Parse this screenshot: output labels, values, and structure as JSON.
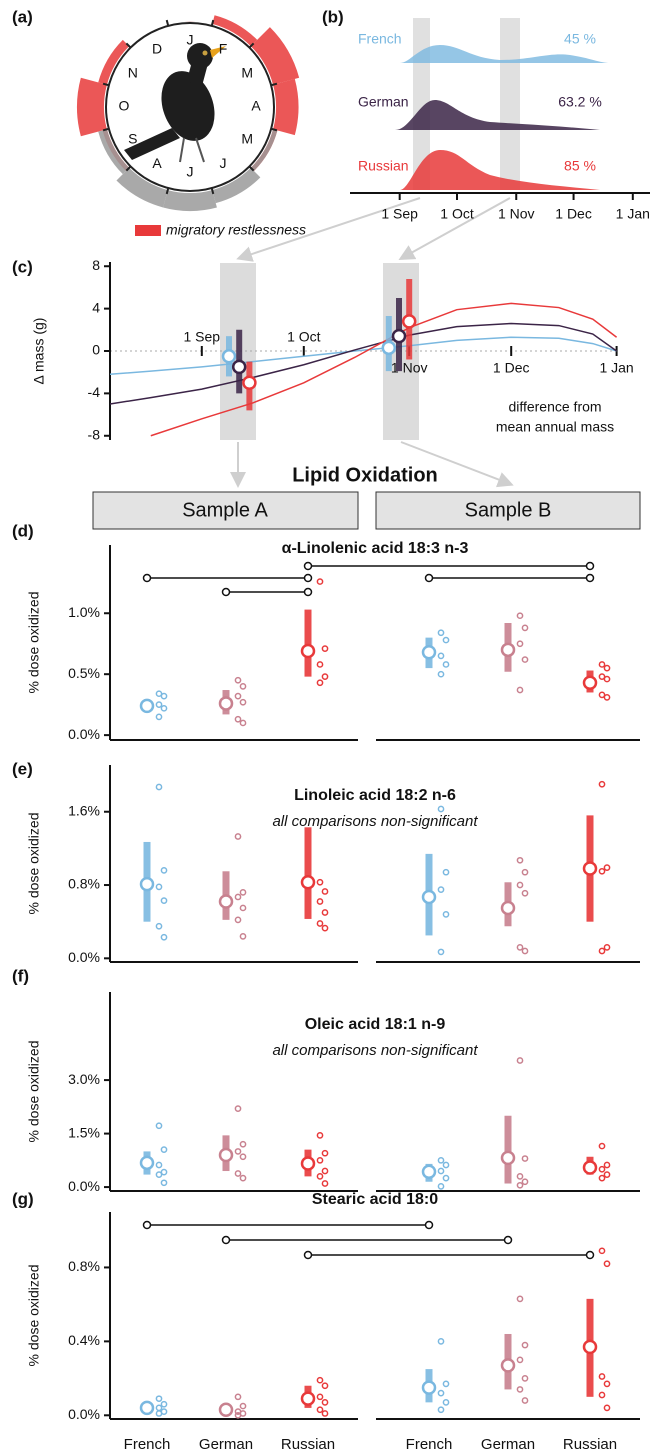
{
  "heading": "Lipid Oxidation",
  "samples": [
    "Sample A",
    "Sample B"
  ],
  "groups": {
    "names": [
      "French",
      "German",
      "Russian"
    ],
    "colors": [
      "#7ab8e0",
      "#c8818f",
      "#e8393a"
    ]
  },
  "chart_data": [
    {
      "type": "radial",
      "label": "(a)",
      "categories": [
        "J",
        "F",
        "M",
        "A",
        "M",
        "J",
        "J",
        "A",
        "S",
        "O",
        "N",
        "D"
      ],
      "series": [
        {
          "name": "migratory restlessness",
          "color": "#e8393a",
          "values": [
            0,
            1,
            3,
            2.5,
            0.5,
            0,
            0,
            0,
            0.5,
            3,
            1,
            0
          ]
        },
        {
          "color": "#9a9a9a",
          "values": [
            0,
            0,
            0,
            0,
            0.5,
            1.5,
            2,
            2,
            1,
            0,
            0,
            0
          ]
        }
      ]
    },
    {
      "type": "ridge",
      "label": "(b)",
      "series": [
        {
          "name": "French",
          "color": "#7ab8e0",
          "share_label": "45 %"
        },
        {
          "name": "German",
          "color": "#3b2447",
          "share_label": "63.2 %"
        },
        {
          "name": "Russian",
          "color": "#e8393a",
          "share_label": "85 %"
        }
      ],
      "xlim": [
        -26,
        131
      ],
      "xticks": [
        {
          "value": 0,
          "label": "1 Sep"
        },
        {
          "value": 30,
          "label": "1 Oct"
        },
        {
          "value": 61,
          "label": "1 Nov"
        },
        {
          "value": 91,
          "label": "1 Dec"
        },
        {
          "value": 122,
          "label": "1 Jan"
        }
      ]
    },
    {
      "type": "line",
      "label": "(c)",
      "ylabel": "Δ mass (g)",
      "annotation": [
        "difference from",
        "mean annual mass"
      ],
      "x": [
        -27,
        -15,
        0,
        15,
        30,
        45,
        61,
        75,
        91,
        105,
        115,
        122
      ],
      "series": [
        {
          "color": "#7ab8e0",
          "values": [
            -2.2,
            -1.9,
            -1.5,
            -1.0,
            -0.5,
            0.0,
            0.5,
            1.0,
            1.3,
            1.2,
            0.7,
            0.0
          ]
        },
        {
          "color": "#3b2447",
          "values": [
            -5.0,
            -4.4,
            -3.6,
            -2.5,
            -1.3,
            0.1,
            1.5,
            2.3,
            2.6,
            2.4,
            1.6,
            0.0
          ]
        },
        {
          "color": "#e8393a",
          "values": [
            null,
            -8.0,
            -6.4,
            -4.9,
            -3.0,
            -0.6,
            2.2,
            3.9,
            4.5,
            4.1,
            3.0,
            1.3
          ]
        }
      ],
      "samples": [
        {
          "x": [
            8,
            11,
            14
          ],
          "values": [
            -0.5,
            -1.5,
            -3.0
          ],
          "low": [
            -2.4,
            -4.0,
            -5.6
          ],
          "high": [
            1.4,
            2.0,
            -1.0
          ]
        },
        {
          "x": [
            55,
            58,
            61
          ],
          "values": [
            0.3,
            1.4,
            2.8
          ],
          "low": [
            -1.9,
            -1.9,
            -0.8
          ],
          "high": [
            3.3,
            5.0,
            6.8
          ]
        }
      ],
      "xlim": [
        -27,
        123
      ],
      "xticks": [
        {
          "value": 0,
          "label": "1 Sep"
        },
        {
          "value": 30,
          "label": "1 Oct"
        },
        {
          "value": 61,
          "label": "1 Nov"
        },
        {
          "value": 91,
          "label": "1 Dec"
        },
        {
          "value": 122,
          "label": "1 Jan"
        }
      ],
      "ylim": [
        -8.4,
        8.4
      ],
      "yticks": [
        -8,
        -4,
        0,
        4,
        8
      ]
    },
    {
      "type": "pointrange",
      "label": "(d)",
      "title": "α-Linolenic acid 18:3 n-3",
      "ylabel": "% dose oxidized",
      "ylim": [
        -0.04,
        1.56
      ],
      "yticks": [
        {
          "value": 0,
          "label": "0.0%"
        },
        {
          "value": 0.5,
          "label": "0.5%"
        },
        {
          "value": 1,
          "label": "1.0%"
        }
      ],
      "samples": [
        {
          "means": [
            0.24,
            0.26,
            0.69
          ],
          "low": [
            0.2,
            0.17,
            0.48
          ],
          "high": [
            0.28,
            0.37,
            1.03
          ],
          "points": [
            [
              0.34,
              0.32,
              0.25,
              0.22,
              0.15
            ],
            [
              0.45,
              0.4,
              0.32,
              0.27,
              0.13,
              0.1
            ],
            [
              1.26,
              0.71,
              0.58,
              0.48,
              0.43
            ]
          ]
        },
        {
          "means": [
            0.68,
            0.7,
            0.43
          ],
          "low": [
            0.55,
            0.52,
            0.35
          ],
          "high": [
            0.8,
            0.92,
            0.53
          ],
          "points": [
            [
              0.84,
              0.78,
              0.65,
              0.58,
              0.5
            ],
            [
              0.98,
              0.88,
              0.75,
              0.62,
              0.37
            ],
            [
              0.58,
              0.55,
              0.48,
              0.46,
              0.33,
              0.31
            ]
          ]
        }
      ]
    },
    {
      "type": "pointrange",
      "label": "(e)",
      "title": "Linoleic acid 18:2 n-6",
      "subtitle": "all comparisons non-significant",
      "ylabel": "% dose oxidized",
      "ylim": [
        -0.04,
        2.11
      ],
      "yticks": [
        {
          "value": 0,
          "label": "0.0%"
        },
        {
          "value": 0.8,
          "label": "0.8%"
        },
        {
          "value": 1.6,
          "label": "1.6%"
        }
      ],
      "samples": [
        {
          "means": [
            0.81,
            0.62,
            0.83
          ],
          "low": [
            0.4,
            0.42,
            0.43
          ],
          "high": [
            1.27,
            0.95,
            1.43
          ],
          "points": [
            [
              1.87,
              0.96,
              0.78,
              0.63,
              0.35,
              0.23
            ],
            [
              1.33,
              0.72,
              0.67,
              0.55,
              0.42,
              0.24
            ],
            [
              0.83,
              0.73,
              0.62,
              0.5,
              0.38,
              0.33
            ]
          ]
        },
        {
          "means": [
            0.67,
            0.55,
            0.98
          ],
          "low": [
            0.25,
            0.35,
            0.4
          ],
          "high": [
            1.14,
            0.83,
            1.56
          ],
          "points": [
            [
              1.63,
              0.94,
              0.75,
              0.48,
              0.07
            ],
            [
              1.07,
              0.94,
              0.8,
              0.71,
              0.12,
              0.08
            ],
            [
              1.9,
              0.99,
              0.95,
              0.12,
              0.08
            ]
          ]
        }
      ]
    },
    {
      "type": "pointrange",
      "label": "(f)",
      "title": "Oleic acid 18:1 n-9",
      "subtitle": "all comparisons non-significant",
      "ylabel": "% dose oxidized",
      "ylim": [
        -0.11,
        5.47
      ],
      "yticks": [
        {
          "value": 0,
          "label": "0.0%"
        },
        {
          "value": 1.5,
          "label": "1.5%"
        },
        {
          "value": 3,
          "label": "3.0%"
        }
      ],
      "samples": [
        {
          "means": [
            0.68,
            0.9,
            0.66
          ],
          "low": [
            0.35,
            0.45,
            0.3
          ],
          "high": [
            1.0,
            1.45,
            1.05
          ],
          "points": [
            [
              1.72,
              1.05,
              0.62,
              0.42,
              0.35,
              0.12
            ],
            [
              2.2,
              1.2,
              1.0,
              0.85,
              0.38,
              0.25
            ],
            [
              1.45,
              0.95,
              0.75,
              0.45,
              0.3,
              0.1
            ]
          ]
        },
        {
          "means": [
            0.43,
            0.82,
            0.55
          ],
          "low": [
            0.15,
            0.1,
            0.35
          ],
          "high": [
            0.65,
            2.0,
            0.85
          ],
          "points": [
            [
              0.75,
              0.62,
              0.45,
              0.25,
              0.02
            ],
            [
              3.55,
              0.8,
              0.3,
              0.15,
              0.05
            ],
            [
              1.15,
              0.62,
              0.5,
              0.35,
              0.25
            ]
          ]
        }
      ]
    },
    {
      "type": "pointrange",
      "label": "(g)",
      "title": "Stearic acid 18:0",
      "ylabel": "% dose oxidized",
      "ylim": [
        -0.02,
        1.1
      ],
      "yticks": [
        {
          "value": 0,
          "label": "0.0%"
        },
        {
          "value": 0.4,
          "label": "0.4%"
        },
        {
          "value": 0.8,
          "label": "0.8%"
        }
      ],
      "samples": [
        {
          "means": [
            0.04,
            0.03,
            0.09
          ],
          "low": [
            0.02,
            0.01,
            0.04
          ],
          "high": [
            0.06,
            0.05,
            0.16
          ],
          "points": [
            [
              0.09,
              0.06,
              0.04,
              0.02,
              0.01
            ],
            [
              0.1,
              0.05,
              0.02,
              0.01,
              0
            ],
            [
              0.19,
              0.16,
              0.1,
              0.07,
              0.03,
              0.01
            ]
          ]
        },
        {
          "means": [
            0.15,
            0.27,
            0.37
          ],
          "low": [
            0.07,
            0.14,
            0.1
          ],
          "high": [
            0.25,
            0.44,
            0.63
          ],
          "points": [
            [
              0.4,
              0.17,
              0.12,
              0.07,
              0.03
            ],
            [
              0.63,
              0.38,
              0.3,
              0.2,
              0.14,
              0.08
            ],
            [
              0.89,
              0.82,
              0.21,
              0.17,
              0.11,
              0.04
            ]
          ]
        }
      ]
    }
  ]
}
